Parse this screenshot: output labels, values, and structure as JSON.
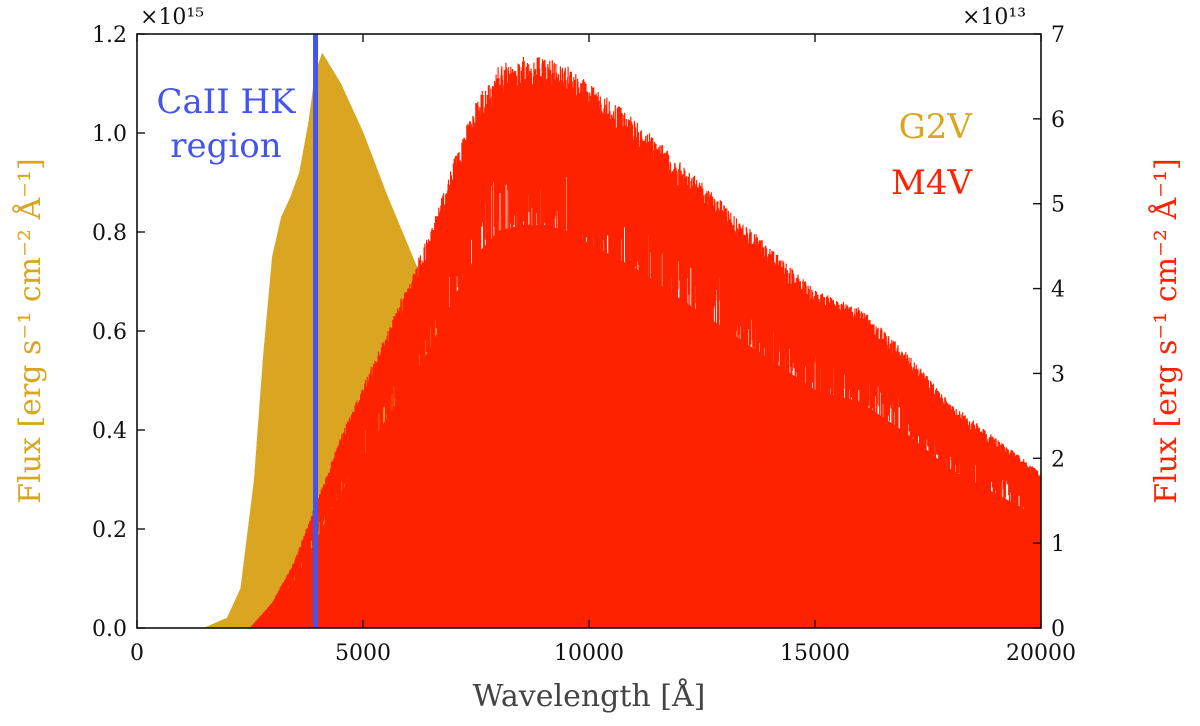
{
  "chart_data": {
    "type": "line",
    "title": "",
    "xlabel": "Wavelength [Å]",
    "ylabel_left": "Flux [erg s⁻¹ cm⁻² Å⁻¹]",
    "ylabel_right": "Flux [erg s⁻¹ cm⁻² Å⁻¹]",
    "xlim": [
      0,
      20000
    ],
    "ylim_left": [
      0,
      1.2
    ],
    "ylim_right": [
      0,
      7
    ],
    "left_multiplier": "×10¹⁵",
    "right_multiplier": "×10¹³",
    "x_ticks": [
      0,
      5000,
      10000,
      15000,
      20000
    ],
    "x_tick_labels": [
      "0",
      "5000",
      "10000",
      "15000",
      "20000"
    ],
    "y_left_ticks": [
      0,
      0.2,
      0.4,
      0.6,
      0.8,
      1.0,
      1.2
    ],
    "y_left_tick_labels": [
      "0.0",
      "0.2",
      "0.4",
      "0.6",
      "0.8",
      "1.0",
      "1.2"
    ],
    "y_right_ticks": [
      0,
      1,
      2,
      3,
      4,
      5,
      6,
      7
    ],
    "y_right_tick_labels": [
      "0",
      "1",
      "2",
      "3",
      "4",
      "5",
      "6",
      "7"
    ],
    "grid": false,
    "legend_position": "top-right",
    "colors": {
      "g2v": "#daa520",
      "m4v": "#ff2200",
      "cahk": "#4455ee",
      "axis": "#111111"
    },
    "annotation": {
      "lines": [
        "CaII HK",
        "region"
      ],
      "x": 3950,
      "color": "#4455ee"
    },
    "series": [
      {
        "name": "G2V",
        "axis": "left",
        "x": [
          1500,
          2000,
          2300,
          2600,
          2800,
          3000,
          3200,
          3400,
          3600,
          3800,
          3950,
          4100,
          4500,
          5000,
          5500,
          6000,
          6500,
          7000,
          7500,
          8000,
          9000,
          10000,
          11000,
          12000,
          13000,
          14000,
          15000,
          16000,
          17000,
          18000,
          19000,
          20000
        ],
        "values": [
          0.0,
          0.02,
          0.08,
          0.3,
          0.55,
          0.75,
          0.83,
          0.87,
          0.92,
          1.02,
          1.12,
          1.16,
          1.1,
          1.0,
          0.88,
          0.77,
          0.66,
          0.57,
          0.49,
          0.43,
          0.34,
          0.27,
          0.22,
          0.18,
          0.155,
          0.135,
          0.115,
          0.1,
          0.085,
          0.072,
          0.062,
          0.052
        ]
      },
      {
        "name": "M4V",
        "axis": "right",
        "x": [
          2500,
          3000,
          3500,
          4000,
          4500,
          5000,
          5500,
          6000,
          6500,
          7000,
          7500,
          8000,
          8500,
          9000,
          9500,
          10000,
          11000,
          12000,
          13000,
          14000,
          15000,
          16000,
          17000,
          18000,
          19000,
          20000
        ],
        "values": [
          0.0,
          0.3,
          0.8,
          1.5,
          2.2,
          2.8,
          3.4,
          4.0,
          4.6,
          5.4,
          6.1,
          6.5,
          6.6,
          6.6,
          6.5,
          6.3,
          5.9,
          5.4,
          4.9,
          4.4,
          3.9,
          3.7,
          3.2,
          2.6,
          2.2,
          1.8
        ]
      }
    ]
  }
}
